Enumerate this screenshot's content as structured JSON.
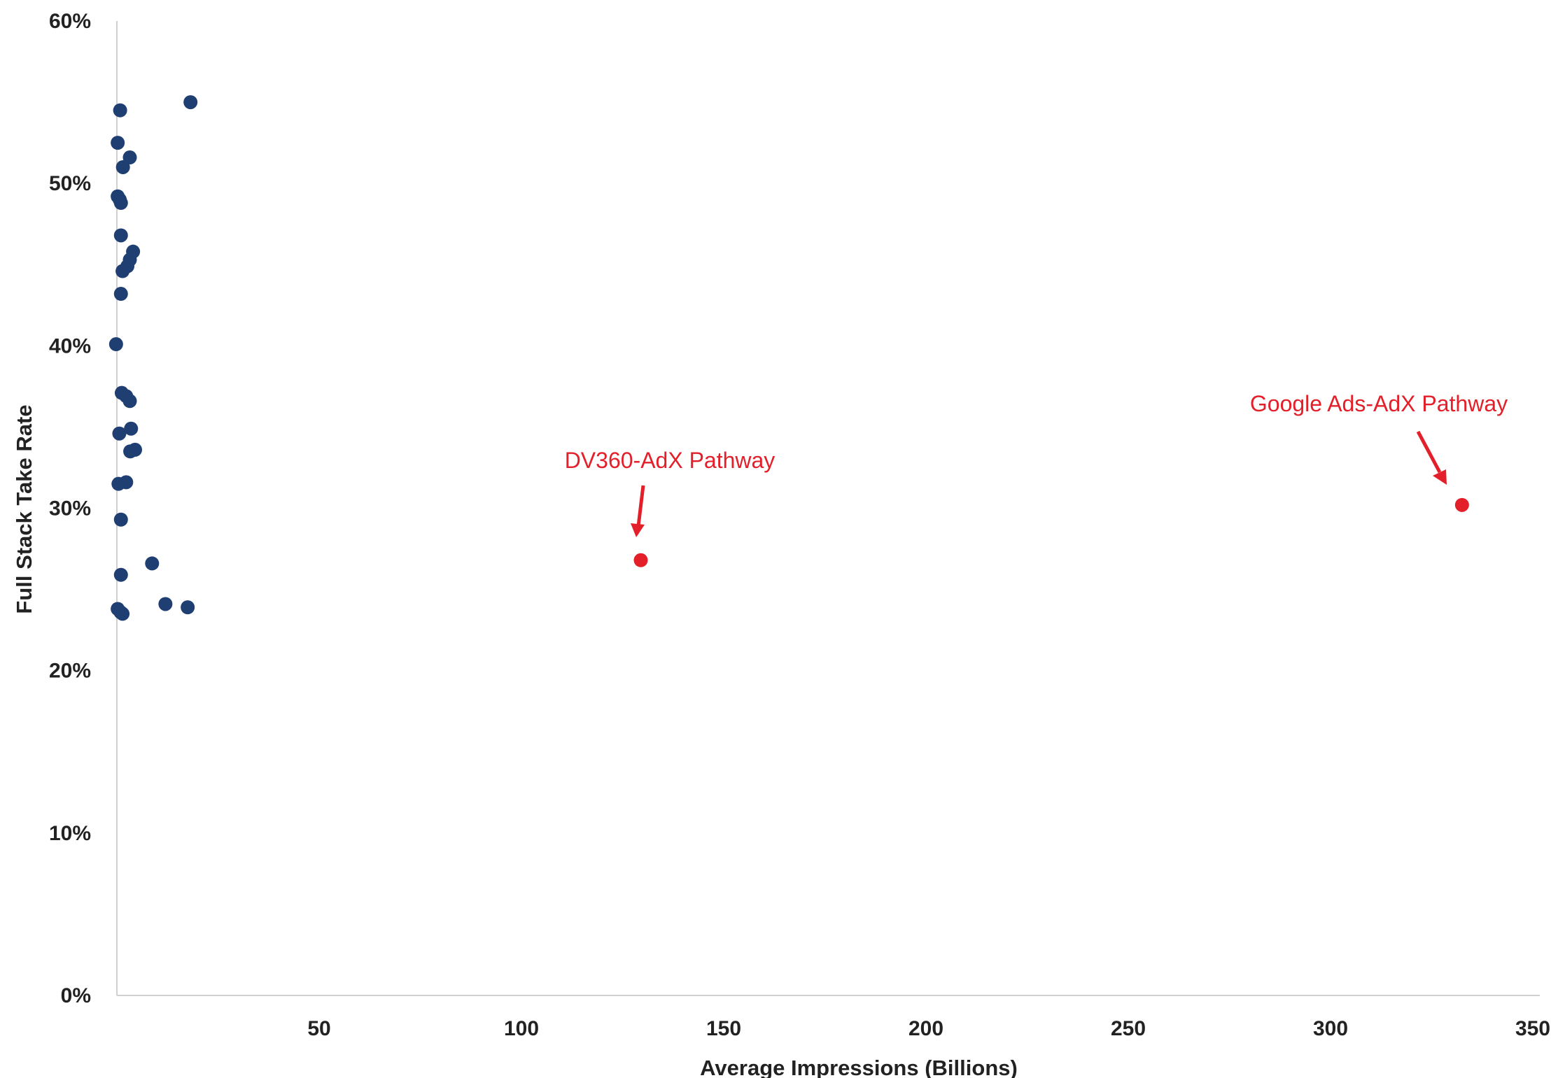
{
  "chart_data": {
    "type": "scatter",
    "title": "",
    "xlabel": "Average Impressions (Billions)",
    "ylabel": "Full Stack Take Rate",
    "xlim": [
      0,
      350
    ],
    "ylim": [
      0,
      60
    ],
    "x_ticks": [
      "50",
      "100",
      "150",
      "200",
      "250",
      "300",
      "350"
    ],
    "y_ticks": [
      "0%",
      "10%",
      "20%",
      "30%",
      "40%",
      "50%",
      "60%"
    ],
    "grid": false,
    "legend": "none",
    "colors": {
      "primary": "#1f3f73",
      "highlight": "#e3202a",
      "axis": "#d0d0d0"
    },
    "series": [
      {
        "points": [
          {
            "x": 0.8,
            "y": 54.5
          },
          {
            "x": 18.2,
            "y": 55.0
          },
          {
            "x": 0.2,
            "y": 52.5
          },
          {
            "x": 3.2,
            "y": 51.6
          },
          {
            "x": 1.5,
            "y": 51.0
          },
          {
            "x": 0.2,
            "y": 49.2
          },
          {
            "x": 0.7,
            "y": 49.0
          },
          {
            "x": 1.0,
            "y": 48.8
          },
          {
            "x": 1.0,
            "y": 46.8
          },
          {
            "x": 4.0,
            "y": 45.8
          },
          {
            "x": 3.2,
            "y": 45.3
          },
          {
            "x": 2.6,
            "y": 44.9
          },
          {
            "x": 1.4,
            "y": 44.6
          },
          {
            "x": 1.0,
            "y": 43.2
          },
          {
            "x": -0.2,
            "y": 40.1
          },
          {
            "x": 1.2,
            "y": 37.1
          },
          {
            "x": 2.3,
            "y": 36.9
          },
          {
            "x": 3.2,
            "y": 36.6
          },
          {
            "x": 3.5,
            "y": 34.9
          },
          {
            "x": 0.6,
            "y": 34.6
          },
          {
            "x": 4.5,
            "y": 33.6
          },
          {
            "x": 3.3,
            "y": 33.5
          },
          {
            "x": 2.3,
            "y": 31.6
          },
          {
            "x": 0.4,
            "y": 31.5
          },
          {
            "x": 1.0,
            "y": 29.3
          },
          {
            "x": 8.7,
            "y": 26.6
          },
          {
            "x": 1.0,
            "y": 25.9
          },
          {
            "x": 12.0,
            "y": 24.1
          },
          {
            "x": 17.5,
            "y": 23.9
          },
          {
            "x": 0.2,
            "y": 23.8
          },
          {
            "x": 0.9,
            "y": 23.6
          },
          {
            "x": 1.4,
            "y": 23.5
          }
        ]
      },
      {
        "points": [
          {
            "x": 129.5,
            "y": 26.8,
            "label": "DV360-AdX Pathway"
          },
          {
            "x": 332.5,
            "y": 30.2,
            "label": "Google Ads-AdX Pathway"
          }
        ]
      }
    ]
  }
}
